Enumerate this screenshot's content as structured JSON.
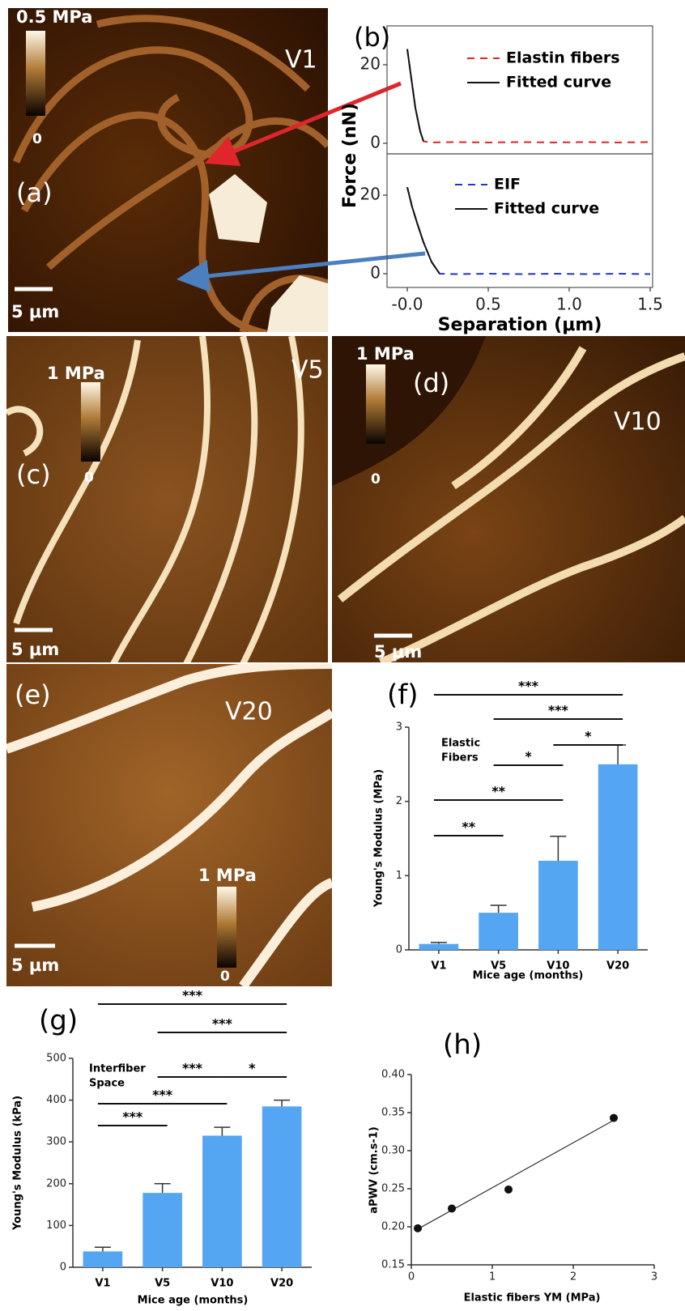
{
  "chart_data": [
    {
      "type": "line",
      "title": "(b)",
      "ylabel": "Force (nN)",
      "xlim": [
        -0.125,
        1.515
      ],
      "ylim": [
        -2.7,
        29.9
      ],
      "yticks": [
        0,
        20
      ],
      "legend": "upper right",
      "series": [
        {
          "name": "Elastin fibers",
          "color": "#e0262a",
          "style": "dashed",
          "x": [
            0,
            0.02,
            0.05,
            0.08,
            0.1,
            0.15,
            0.3,
            0.5,
            0.7,
            0.9,
            1.1,
            1.3,
            1.5
          ],
          "values": [
            24,
            18,
            9,
            3,
            0.5,
            0.2,
            0.3,
            0.2,
            0.3,
            0.2,
            0.3,
            0.2,
            0.3
          ]
        },
        {
          "name": "Fitted curve",
          "color": "#111111",
          "style": "solid",
          "x": [
            0,
            0.02,
            0.05,
            0.08,
            0.1
          ],
          "values": [
            24,
            18,
            9,
            3,
            0.5
          ]
        }
      ]
    },
    {
      "type": "line",
      "xlabel": "Separation (μm)",
      "xlim": [
        -0.125,
        1.515
      ],
      "ylim": [
        -3.5,
        30.5
      ],
      "yticks": [
        0,
        20
      ],
      "legend": "upper center",
      "xticks": [
        {
          "value": 0,
          "label": "-0.0"
        },
        0.5,
        {
          "value": 1,
          "label": "1.0"
        },
        1.5
      ],
      "series": [
        {
          "name": "EIF",
          "color": "#2233cc",
          "style": "dashed",
          "x": [
            0,
            0.03,
            0.06,
            0.1,
            0.15,
            0.2,
            0.3,
            0.5,
            0.7,
            0.9,
            1.1,
            1.3,
            1.5
          ],
          "values": [
            22,
            17,
            13,
            8,
            3,
            0,
            -0.1,
            0,
            -0.1,
            0,
            -0.1,
            0,
            -0.1
          ]
        },
        {
          "name": "Fitted curve",
          "color": "#111111",
          "style": "solid",
          "x": [
            0,
            0.03,
            0.06,
            0.1,
            0.15,
            0.2
          ],
          "values": [
            22,
            17,
            13,
            8,
            3,
            0
          ]
        }
      ]
    },
    {
      "type": "bar",
      "title": "(f)",
      "annotation": [
        "Elastic",
        "Fibers"
      ],
      "ylabel": "Young's Modulus (MPa)",
      "xlabel": "Mice age (months)",
      "categories": [
        "V1",
        "V5",
        "V10",
        "V20"
      ],
      "values": [
        0.08,
        0.5,
        1.2,
        2.5
      ],
      "errors": [
        0.02,
        0.1,
        0.33,
        0.26
      ],
      "color": "#55a6f2",
      "ylim": [
        0,
        3
      ],
      "yticks": [
        0,
        1,
        2,
        3
      ],
      "significance": [
        {
          "from": "V1",
          "to": "V20",
          "label": "***"
        },
        {
          "from": "V5",
          "to": "V20",
          "label": "***"
        },
        {
          "from": "V10",
          "to": "V20",
          "label": "*"
        },
        {
          "from": "V5",
          "to": "V10",
          "label": "*"
        },
        {
          "from": "V1",
          "to": "V10",
          "label": "**"
        },
        {
          "from": "V1",
          "to": "V5",
          "label": "**"
        }
      ]
    },
    {
      "type": "bar",
      "title": "(g)",
      "annotation": [
        "Interfiber",
        "Space"
      ],
      "ylabel": "Young's Modulus (kPa)",
      "xlabel": "Mice age (months)",
      "categories": [
        "V1",
        "V5",
        "V10",
        "V20"
      ],
      "values": [
        38,
        178,
        315,
        385
      ],
      "errors": [
        10,
        22,
        20,
        15
      ],
      "color": "#55a6f2",
      "ylim": [
        0,
        500
      ],
      "yticks": [
        0,
        100,
        200,
        300,
        400,
        500
      ],
      "significance": [
        {
          "from": "V1",
          "to": "V20",
          "label": "***"
        },
        {
          "from": "V5",
          "to": "V20",
          "label": "***"
        },
        {
          "from": "V5",
          "to": "V10",
          "label": "***"
        },
        {
          "from": "V10",
          "to": "V20",
          "label": "*"
        },
        {
          "from": "V1",
          "to": "V10",
          "label": "***"
        },
        {
          "from": "V1",
          "to": "V5",
          "label": "***"
        }
      ]
    },
    {
      "type": "scatter",
      "title": "(h)",
      "ylabel": "aPWV (cm.s-1)",
      "xlabel": "Elastic fibers YM (MPa)",
      "x": [
        0.08,
        0.5,
        1.2,
        2.5
      ],
      "values": [
        0.198,
        0.224,
        0.249,
        0.343
      ],
      "color": "#111111",
      "fit": {
        "x": [
          0.08,
          2.5
        ],
        "values": [
          0.197,
          0.34
        ]
      },
      "xlim": [
        0,
        3
      ],
      "xticks": [
        0,
        1,
        2,
        3
      ],
      "ylim": [
        0.15,
        0.4
      ],
      "yticks": [
        0.15,
        {
          "value": 0.2,
          "label": "0.20"
        },
        0.25,
        {
          "value": 0.3,
          "label": "0.30"
        },
        0.35,
        {
          "value": 0.4,
          "label": "0.40"
        }
      ]
    }
  ],
  "images": [
    {
      "label": "(a)",
      "age": "V1",
      "scale_max": "0.5 MPa",
      "scale_min": "0",
      "scalebar": "5 μm"
    },
    {
      "label": "(c)",
      "age": "V5",
      "scale_max": "1 MPa",
      "scale_min": "0",
      "scalebar": "5 μm"
    },
    {
      "label": "(d)",
      "age": "V10",
      "scale_max": "1 MPa",
      "scale_min": "0",
      "scalebar": "5 μm"
    },
    {
      "label": "(e)",
      "age": "V20",
      "scale_max": "1 MPa",
      "scale_min": "0",
      "scalebar": "5 μm"
    }
  ]
}
